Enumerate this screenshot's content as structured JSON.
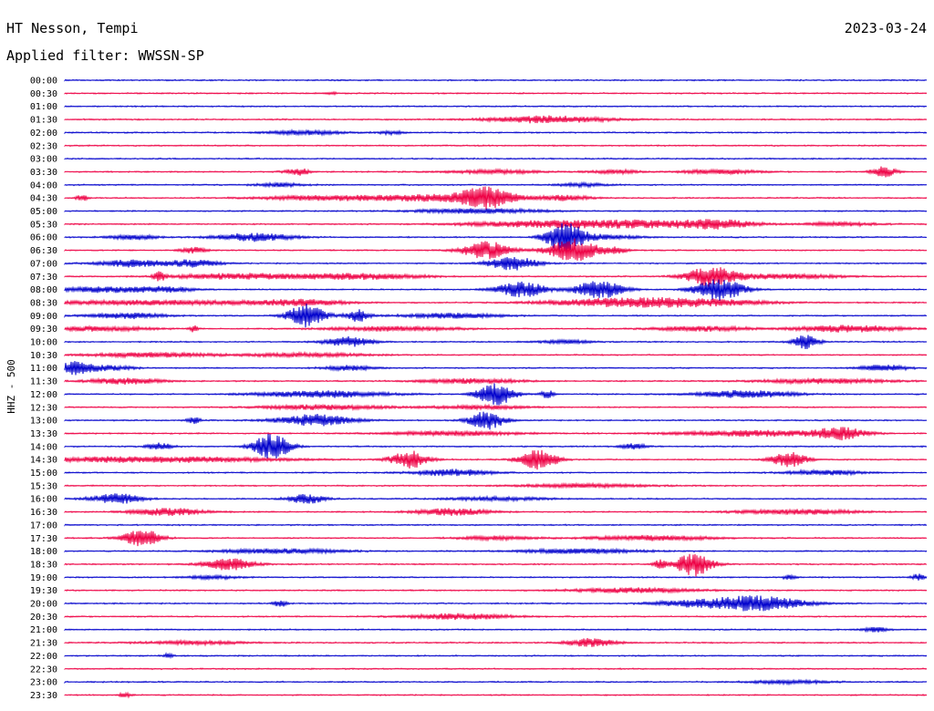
{
  "header": {
    "station": "HT Nesson, Tempi",
    "date": "2023-03-24",
    "filter": "Applied filter: WWSSN-SP"
  },
  "chart_data": {
    "type": "helicorder",
    "channel_label": "HHZ - 500",
    "colors": [
      "#0000cc",
      "#ee0044"
    ],
    "grid": false,
    "rows": [
      {
        "time": "00:00",
        "color": "#0000cc",
        "events": []
      },
      {
        "time": "00:30",
        "color": "#ee0044",
        "events": [
          {
            "t": 0.31,
            "amp": 0.2,
            "dur": 0.005
          }
        ]
      },
      {
        "time": "01:00",
        "color": "#0000cc",
        "events": []
      },
      {
        "time": "01:30",
        "color": "#ee0044",
        "events": [
          {
            "t": 0.56,
            "amp": 0.6,
            "dur": 0.05
          }
        ]
      },
      {
        "time": "02:00",
        "color": "#0000cc",
        "events": [
          {
            "t": 0.28,
            "amp": 0.35,
            "dur": 0.03
          },
          {
            "t": 0.38,
            "amp": 0.3,
            "dur": 0.01
          }
        ]
      },
      {
        "time": "02:30",
        "color": "#ee0044",
        "events": []
      },
      {
        "time": "03:00",
        "color": "#0000cc",
        "events": []
      },
      {
        "time": "03:30",
        "color": "#ee0044",
        "events": [
          {
            "t": 0.27,
            "amp": 0.6,
            "dur": 0.01
          },
          {
            "t": 0.5,
            "amp": 0.3,
            "dur": 0.04
          },
          {
            "t": 0.64,
            "amp": 0.3,
            "dur": 0.02
          },
          {
            "t": 0.76,
            "amp": 0.4,
            "dur": 0.03
          },
          {
            "t": 0.95,
            "amp": 0.9,
            "dur": 0.01
          }
        ]
      },
      {
        "time": "04:00",
        "color": "#0000cc",
        "events": [
          {
            "t": 0.25,
            "amp": 0.3,
            "dur": 0.02
          },
          {
            "t": 0.6,
            "amp": 0.3,
            "dur": 0.02
          }
        ]
      },
      {
        "time": "04:30",
        "color": "#ee0044",
        "events": [
          {
            "t": 0.02,
            "amp": 0.5,
            "dur": 0.005
          },
          {
            "t": 0.3,
            "amp": 0.4,
            "dur": 0.05
          },
          {
            "t": 0.44,
            "amp": 0.6,
            "dur": 0.06
          },
          {
            "t": 0.49,
            "amp": 1.6,
            "dur": 0.02
          },
          {
            "t": 0.58,
            "amp": 0.4,
            "dur": 0.02
          }
        ]
      },
      {
        "time": "05:00",
        "color": "#0000cc",
        "events": [
          {
            "t": 0.48,
            "amp": 0.4,
            "dur": 0.05
          }
        ]
      },
      {
        "time": "05:30",
        "color": "#ee0044",
        "events": [
          {
            "t": 0.55,
            "amp": 0.5,
            "dur": 0.06
          },
          {
            "t": 0.67,
            "amp": 0.6,
            "dur": 0.06
          },
          {
            "t": 0.76,
            "amp": 0.6,
            "dur": 0.03
          },
          {
            "t": 0.9,
            "amp": 0.3,
            "dur": 0.03
          }
        ]
      },
      {
        "time": "06:00",
        "color": "#0000cc",
        "events": [
          {
            "t": 0.08,
            "amp": 0.4,
            "dur": 0.02
          },
          {
            "t": 0.22,
            "amp": 0.7,
            "dur": 0.03
          },
          {
            "t": 0.58,
            "amp": 2.5,
            "dur": 0.015
          },
          {
            "t": 0.62,
            "amp": 0.4,
            "dur": 0.03
          }
        ]
      },
      {
        "time": "06:30",
        "color": "#ee0044",
        "events": [
          {
            "t": 0.15,
            "amp": 0.5,
            "dur": 0.01
          },
          {
            "t": 0.49,
            "amp": 1.5,
            "dur": 0.02
          },
          {
            "t": 0.59,
            "amp": 2.0,
            "dur": 0.02
          },
          {
            "t": 0.64,
            "amp": 0.5,
            "dur": 0.01
          }
        ]
      },
      {
        "time": "07:00",
        "color": "#0000cc",
        "events": [
          {
            "t": 0.08,
            "amp": 0.6,
            "dur": 0.03
          },
          {
            "t": 0.15,
            "amp": 0.6,
            "dur": 0.02
          },
          {
            "t": 0.52,
            "amp": 1.2,
            "dur": 0.02
          }
        ]
      },
      {
        "time": "07:30",
        "color": "#ee0044",
        "events": [
          {
            "t": 0.11,
            "amp": 0.7,
            "dur": 0.005
          },
          {
            "t": 0.2,
            "amp": 0.5,
            "dur": 0.05
          },
          {
            "t": 0.34,
            "amp": 0.5,
            "dur": 0.05
          },
          {
            "t": 0.75,
            "amp": 1.6,
            "dur": 0.02
          },
          {
            "t": 0.83,
            "amp": 0.4,
            "dur": 0.05
          }
        ]
      },
      {
        "time": "08:00",
        "color": "#0000cc",
        "events": [
          {
            "t": 0.05,
            "amp": 0.5,
            "dur": 0.04
          },
          {
            "t": 0.12,
            "amp": 0.4,
            "dur": 0.02
          },
          {
            "t": 0.53,
            "amp": 1.3,
            "dur": 0.02
          },
          {
            "t": 0.62,
            "amp": 1.5,
            "dur": 0.02
          },
          {
            "t": 0.76,
            "amp": 1.8,
            "dur": 0.02
          }
        ]
      },
      {
        "time": "08:30",
        "color": "#ee0044",
        "events": [
          {
            "t": 0.1,
            "amp": 0.4,
            "dur": 0.08
          },
          {
            "t": 0.27,
            "amp": 0.5,
            "dur": 0.04
          },
          {
            "t": 0.62,
            "amp": 0.5,
            "dur": 0.05
          },
          {
            "t": 0.72,
            "amp": 0.7,
            "dur": 0.06
          }
        ]
      },
      {
        "time": "09:00",
        "color": "#0000cc",
        "events": [
          {
            "t": 0.07,
            "amp": 0.5,
            "dur": 0.03
          },
          {
            "t": 0.28,
            "amp": 2.0,
            "dur": 0.015
          },
          {
            "t": 0.34,
            "amp": 1.0,
            "dur": 0.01
          },
          {
            "t": 0.45,
            "amp": 0.4,
            "dur": 0.04
          }
        ]
      },
      {
        "time": "09:30",
        "color": "#ee0044",
        "events": [
          {
            "t": 0.04,
            "amp": 0.4,
            "dur": 0.04
          },
          {
            "t": 0.15,
            "amp": 0.6,
            "dur": 0.003
          },
          {
            "t": 0.38,
            "amp": 0.4,
            "dur": 0.05
          },
          {
            "t": 0.74,
            "amp": 0.4,
            "dur": 0.04
          },
          {
            "t": 0.91,
            "amp": 0.6,
            "dur": 0.04
          }
        ]
      },
      {
        "time": "10:00",
        "color": "#0000cc",
        "events": [
          {
            "t": 0.33,
            "amp": 0.8,
            "dur": 0.02
          },
          {
            "t": 0.58,
            "amp": 0.3,
            "dur": 0.02
          },
          {
            "t": 0.86,
            "amp": 1.2,
            "dur": 0.01
          }
        ]
      },
      {
        "time": "10:30",
        "color": "#ee0044",
        "events": [
          {
            "t": 0.1,
            "amp": 0.4,
            "dur": 0.05
          },
          {
            "t": 0.28,
            "amp": 0.3,
            "dur": 0.05
          }
        ]
      },
      {
        "time": "11:00",
        "color": "#0000cc",
        "events": [
          {
            "t": 0.01,
            "amp": 1.1,
            "dur": 0.015
          },
          {
            "t": 0.05,
            "amp": 0.4,
            "dur": 0.02
          },
          {
            "t": 0.33,
            "amp": 0.4,
            "dur": 0.02
          },
          {
            "t": 0.95,
            "amp": 0.5,
            "dur": 0.02
          }
        ]
      },
      {
        "time": "11:30",
        "color": "#ee0044",
        "events": [
          {
            "t": 0.07,
            "amp": 0.5,
            "dur": 0.03
          },
          {
            "t": 0.47,
            "amp": 0.4,
            "dur": 0.04
          },
          {
            "t": 0.88,
            "amp": 0.4,
            "dur": 0.05
          }
        ]
      },
      {
        "time": "12:00",
        "color": "#0000cc",
        "events": [
          {
            "t": 0.3,
            "amp": 0.6,
            "dur": 0.05
          },
          {
            "t": 0.5,
            "amp": 1.9,
            "dur": 0.015
          },
          {
            "t": 0.56,
            "amp": 0.7,
            "dur": 0.005
          },
          {
            "t": 0.79,
            "amp": 0.6,
            "dur": 0.04
          }
        ]
      },
      {
        "time": "12:30",
        "color": "#ee0044",
        "events": [
          {
            "t": 0.3,
            "amp": 0.4,
            "dur": 0.05
          },
          {
            "t": 0.48,
            "amp": 0.3,
            "dur": 0.04
          }
        ]
      },
      {
        "time": "13:00",
        "color": "#0000cc",
        "events": [
          {
            "t": 0.15,
            "amp": 0.6,
            "dur": 0.005
          },
          {
            "t": 0.29,
            "amp": 1.0,
            "dur": 0.03
          },
          {
            "t": 0.49,
            "amp": 1.5,
            "dur": 0.015
          }
        ]
      },
      {
        "time": "13:30",
        "color": "#ee0044",
        "events": [
          {
            "t": 0.45,
            "amp": 0.4,
            "dur": 0.05
          },
          {
            "t": 0.8,
            "amp": 0.5,
            "dur": 0.06
          },
          {
            "t": 0.9,
            "amp": 1.0,
            "dur": 0.02
          }
        ]
      },
      {
        "time": "14:00",
        "color": "#0000cc",
        "events": [
          {
            "t": 0.11,
            "amp": 0.6,
            "dur": 0.01
          },
          {
            "t": 0.24,
            "amp": 2.2,
            "dur": 0.015
          },
          {
            "t": 0.66,
            "amp": 0.5,
            "dur": 0.01
          }
        ]
      },
      {
        "time": "14:30",
        "color": "#ee0044",
        "events": [
          {
            "t": 0.1,
            "amp": 0.5,
            "dur": 0.1
          },
          {
            "t": 0.4,
            "amp": 1.5,
            "dur": 0.015
          },
          {
            "t": 0.55,
            "amp": 1.7,
            "dur": 0.015
          },
          {
            "t": 0.84,
            "amp": 1.3,
            "dur": 0.015
          }
        ]
      },
      {
        "time": "15:00",
        "color": "#0000cc",
        "events": [
          {
            "t": 0.45,
            "amp": 0.6,
            "dur": 0.03
          },
          {
            "t": 0.88,
            "amp": 0.4,
            "dur": 0.03
          }
        ]
      },
      {
        "time": "15:30",
        "color": "#ee0044",
        "events": [
          {
            "t": 0.6,
            "amp": 0.3,
            "dur": 0.05
          }
        ]
      },
      {
        "time": "16:00",
        "color": "#0000cc",
        "events": [
          {
            "t": 0.06,
            "amp": 0.9,
            "dur": 0.02
          },
          {
            "t": 0.28,
            "amp": 0.8,
            "dur": 0.015
          },
          {
            "t": 0.5,
            "amp": 0.3,
            "dur": 0.04
          }
        ]
      },
      {
        "time": "16:30",
        "color": "#ee0044",
        "events": [
          {
            "t": 0.12,
            "amp": 0.6,
            "dur": 0.03
          },
          {
            "t": 0.45,
            "amp": 0.6,
            "dur": 0.03
          },
          {
            "t": 0.85,
            "amp": 0.4,
            "dur": 0.05
          }
        ]
      },
      {
        "time": "17:00",
        "color": "#0000cc",
        "events": []
      },
      {
        "time": "17:30",
        "color": "#ee0044",
        "events": [
          {
            "t": 0.09,
            "amp": 1.5,
            "dur": 0.015
          },
          {
            "t": 0.5,
            "amp": 0.3,
            "dur": 0.03
          },
          {
            "t": 0.68,
            "amp": 0.4,
            "dur": 0.05
          }
        ]
      },
      {
        "time": "18:00",
        "color": "#0000cc",
        "events": [
          {
            "t": 0.25,
            "amp": 0.4,
            "dur": 0.05
          },
          {
            "t": 0.6,
            "amp": 0.4,
            "dur": 0.05
          }
        ]
      },
      {
        "time": "18:30",
        "color": "#ee0044",
        "events": [
          {
            "t": 0.19,
            "amp": 1.0,
            "dur": 0.02
          },
          {
            "t": 0.69,
            "amp": 0.8,
            "dur": 0.005
          },
          {
            "t": 0.73,
            "amp": 2.0,
            "dur": 0.015
          }
        ]
      },
      {
        "time": "19:00",
        "color": "#0000cc",
        "events": [
          {
            "t": 0.17,
            "amp": 0.3,
            "dur": 0.02
          },
          {
            "t": 0.84,
            "amp": 0.4,
            "dur": 0.005
          },
          {
            "t": 0.99,
            "amp": 0.6,
            "dur": 0.005
          }
        ]
      },
      {
        "time": "19:30",
        "color": "#ee0044",
        "events": [
          {
            "t": 0.66,
            "amp": 0.4,
            "dur": 0.05
          }
        ]
      },
      {
        "time": "20:00",
        "color": "#0000cc",
        "events": [
          {
            "t": 0.25,
            "amp": 0.6,
            "dur": 0.005
          },
          {
            "t": 0.72,
            "amp": 0.4,
            "dur": 0.03
          },
          {
            "t": 0.8,
            "amp": 1.3,
            "dur": 0.04
          }
        ]
      },
      {
        "time": "20:30",
        "color": "#ee0044",
        "events": [
          {
            "t": 0.46,
            "amp": 0.5,
            "dur": 0.04
          }
        ]
      },
      {
        "time": "21:00",
        "color": "#0000cc",
        "events": [
          {
            "t": 0.94,
            "amp": 0.4,
            "dur": 0.01
          }
        ]
      },
      {
        "time": "21:30",
        "color": "#ee0044",
        "events": [
          {
            "t": 0.15,
            "amp": 0.3,
            "dur": 0.04
          },
          {
            "t": 0.61,
            "amp": 0.7,
            "dur": 0.02
          }
        ]
      },
      {
        "time": "22:00",
        "color": "#0000cc",
        "events": [
          {
            "t": 0.12,
            "amp": 0.3,
            "dur": 0.005
          }
        ]
      },
      {
        "time": "22:30",
        "color": "#ee0044",
        "events": []
      },
      {
        "time": "23:00",
        "color": "#0000cc",
        "events": [
          {
            "t": 0.84,
            "amp": 0.3,
            "dur": 0.03
          }
        ]
      },
      {
        "time": "23:30",
        "color": "#ee0044",
        "events": [
          {
            "t": 0.07,
            "amp": 0.4,
            "dur": 0.005
          }
        ]
      }
    ]
  }
}
